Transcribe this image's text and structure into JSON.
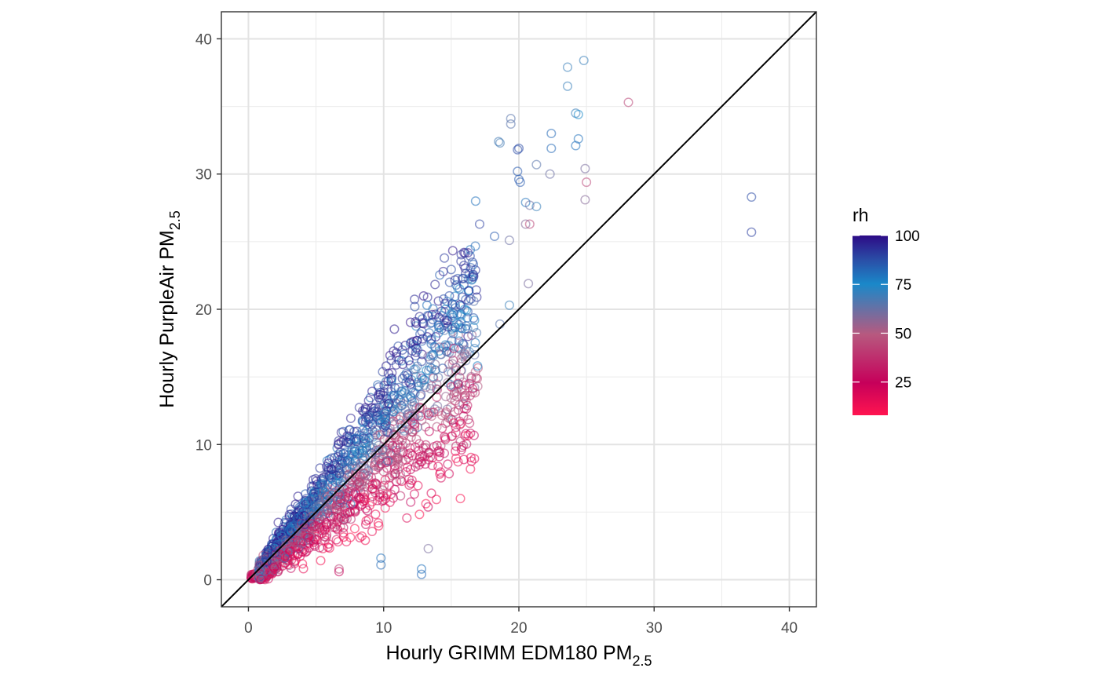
{
  "chart_data": {
    "type": "scatter",
    "title": "",
    "xlabel": {
      "main": "Hourly GRIMM EDM180 PM",
      "sub": "2.5"
    },
    "ylabel": {
      "main": "Hourly PurpleAir PM",
      "sub": "2.5"
    },
    "xlim": [
      -2,
      42
    ],
    "ylim": [
      -2,
      42
    ],
    "x_ticks": [
      0,
      10,
      20,
      30,
      40
    ],
    "y_ticks": [
      0,
      10,
      20,
      30,
      40
    ],
    "x_tick_labels": [
      "0",
      "10",
      "20",
      "30",
      "40"
    ],
    "y_tick_labels": [
      "0",
      "10",
      "20",
      "30",
      "40"
    ],
    "grid": true,
    "reference_line": {
      "type": "identity",
      "slope": 1,
      "intercept": 0,
      "color": "#000000"
    },
    "marker": "open-circle",
    "color_variable": "rh",
    "legend": {
      "title": "rh",
      "placement": "right",
      "range": [
        8,
        100
      ],
      "breaks": [
        25,
        50,
        75,
        100
      ],
      "break_labels": [
        "25",
        "50",
        "75",
        "100"
      ],
      "colors": [
        "#ff1450",
        "#c6005a",
        "#b7597f",
        "#1a88c9",
        "#2a50a8",
        "#2d0b86"
      ]
    },
    "highlighted_points": [
      [
        24.8,
        38.4,
        70
      ],
      [
        23.6,
        37.9,
        70
      ],
      [
        23.6,
        36.5,
        70
      ],
      [
        28.1,
        35.3,
        45
      ],
      [
        24.2,
        34.5,
        70
      ],
      [
        24.4,
        34.4,
        75
      ],
      [
        19.4,
        34.1,
        65
      ],
      [
        19.4,
        33.7,
        65
      ],
      [
        22.4,
        33.0,
        82
      ],
      [
        24.4,
        32.6,
        80
      ],
      [
        18.5,
        32.4,
        68
      ],
      [
        18.6,
        32.3,
        68
      ],
      [
        24.2,
        32.1,
        80
      ],
      [
        20.0,
        31.9,
        88
      ],
      [
        19.9,
        31.8,
        88
      ],
      [
        22.4,
        31.9,
        82
      ],
      [
        21.3,
        30.7,
        65
      ],
      [
        24.9,
        30.4,
        60
      ],
      [
        19.9,
        30.2,
        85
      ],
      [
        22.3,
        30.0,
        62
      ],
      [
        20.0,
        29.6,
        85
      ],
      [
        20.1,
        29.4,
        85
      ],
      [
        25.0,
        29.4,
        45
      ],
      [
        37.2,
        28.3,
        88
      ],
      [
        16.8,
        28.0,
        80
      ],
      [
        20.5,
        27.9,
        80
      ],
      [
        24.9,
        28.1,
        58
      ],
      [
        20.8,
        27.7,
        62
      ],
      [
        21.3,
        27.6,
        70
      ],
      [
        37.2,
        25.7,
        90
      ],
      [
        17.1,
        26.3,
        90
      ],
      [
        20.8,
        26.3,
        45
      ],
      [
        20.5,
        26.3,
        58
      ],
      [
        18.2,
        25.4,
        85
      ],
      [
        19.3,
        25.1,
        62
      ],
      [
        16.4,
        24.4,
        80
      ],
      [
        13.2,
        20.3,
        80
      ],
      [
        12.3,
        20.2,
        88
      ],
      [
        20.7,
        21.9,
        60
      ],
      [
        19.3,
        20.3,
        70
      ],
      [
        18.6,
        18.9,
        65
      ],
      [
        13.3,
        2.3,
        60
      ],
      [
        9.8,
        1.6,
        80
      ],
      [
        9.8,
        1.1,
        82
      ],
      [
        12.8,
        0.8,
        80
      ],
      [
        12.8,
        0.4,
        82
      ],
      [
        6.7,
        0.8,
        45
      ],
      [
        6.7,
        0.6,
        25
      ]
    ],
    "bulk_cloud": {
      "description_points": "dense cluster of several thousand hourly observations along and above the 1:1 line between x=0 and x=17",
      "x_range": [
        0.2,
        17
      ],
      "y_range": [
        0,
        25
      ]
    }
  }
}
